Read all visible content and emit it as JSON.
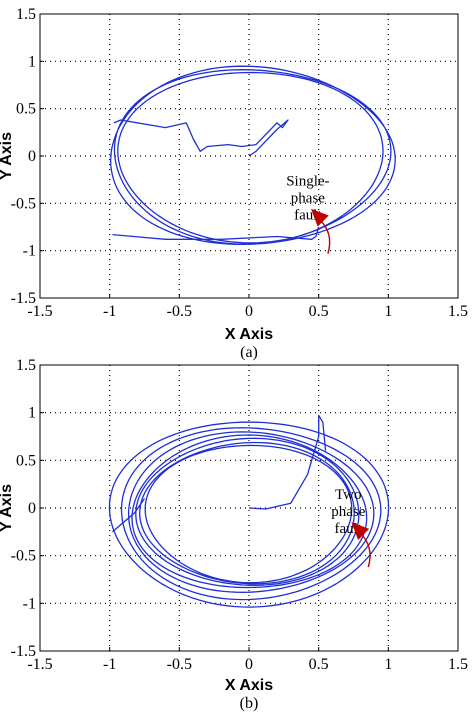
{
  "chart_data": [
    {
      "type": "line",
      "caption": "(a)",
      "xlabel": "X Axis",
      "ylabel": "Y Axis",
      "xlim": [
        -1.5,
        1.5
      ],
      "ylim": [
        -1.5,
        1.5
      ],
      "xticks": [
        "-1.5",
        "-1",
        "-0.5",
        "0",
        "0.5",
        "1",
        "1.5"
      ],
      "yticks": [
        "1.5",
        "1",
        "0.5",
        "0",
        "-0.5",
        "-1",
        "-1.5"
      ],
      "grid": true,
      "annotation": {
        "lines": [
          "Single-",
          "phase",
          "fault"
        ],
        "target": [
          0.48,
          -0.61
        ]
      },
      "series": [
        {
          "kind": "orbit",
          "center": [
            0.01,
            0.0
          ],
          "rx": [
            0.95,
            0.99,
            1.02
          ],
          "ry": [
            0.9,
            0.92,
            0.94
          ],
          "tilt": [
            0.0,
            0.15,
            -0.1
          ]
        },
        {
          "kind": "trajectory",
          "points": [
            [
              -0.97,
              0.35
            ],
            [
              -0.92,
              0.38
            ],
            [
              -0.6,
              0.3
            ],
            [
              -0.45,
              0.35
            ],
            [
              -0.4,
              0.18
            ],
            [
              -0.35,
              0.05
            ],
            [
              -0.3,
              0.1
            ],
            [
              -0.15,
              0.12
            ],
            [
              -0.05,
              0.1
            ],
            [
              0.05,
              0.12
            ],
            [
              0.2,
              0.35
            ],
            [
              0.24,
              0.3
            ],
            [
              0.28,
              0.38
            ],
            [
              0.2,
              0.28
            ],
            [
              0.05,
              0.05
            ],
            [
              0.0,
              0.0
            ]
          ]
        },
        {
          "kind": "trajectory",
          "points": [
            [
              -0.98,
              -0.83
            ],
            [
              -0.6,
              -0.88
            ],
            [
              -0.2,
              -0.88
            ],
            [
              0.2,
              -0.85
            ],
            [
              0.45,
              -0.88
            ],
            [
              0.48,
              -0.85
            ],
            [
              0.5,
              -0.75
            ]
          ]
        }
      ]
    },
    {
      "type": "line",
      "caption": "(b)",
      "xlabel": "X Axis",
      "ylabel": "Y Axis",
      "xlim": [
        -1.5,
        1.5
      ],
      "ylim": [
        -1.5,
        1.5
      ],
      "xticks": [
        "-1.5",
        "-1",
        "-0.5",
        "0",
        "0.5",
        "1",
        "1.5"
      ],
      "yticks": [
        "1.5",
        "1",
        "0.5",
        "0",
        "-0.5",
        "-1",
        "-1.5"
      ],
      "grid": true,
      "annotation": {
        "lines": [
          "Two",
          "phase",
          "fault"
        ],
        "target": [
          0.77,
          -0.2
        ]
      },
      "series": [
        {
          "kind": "orbit",
          "center": [
            0.0,
            -0.05
          ],
          "rx": [
            1.0,
            0.93,
            0.88,
            0.84,
            0.8,
            0.77,
            0.74
          ],
          "ry": [
            0.97,
            0.9,
            0.84,
            0.8,
            0.77,
            0.74,
            0.72
          ],
          "tilt": [
            0.0,
            0.0,
            0.05,
            -0.05,
            0.08,
            -0.08,
            0.0
          ]
        },
        {
          "kind": "trajectory",
          "points": [
            [
              0.0,
              0.0
            ],
            [
              0.12,
              -0.01
            ],
            [
              0.3,
              0.05
            ],
            [
              0.42,
              0.35
            ],
            [
              0.5,
              0.75
            ],
            [
              0.5,
              0.97
            ],
            [
              0.53,
              0.9
            ],
            [
              0.55,
              0.6
            ]
          ]
        },
        {
          "kind": "trajectory",
          "points": [
            [
              -0.98,
              -0.25
            ],
            [
              -0.9,
              -0.15
            ],
            [
              -0.82,
              -0.05
            ],
            [
              -0.75,
              0.1
            ]
          ]
        }
      ]
    }
  ]
}
